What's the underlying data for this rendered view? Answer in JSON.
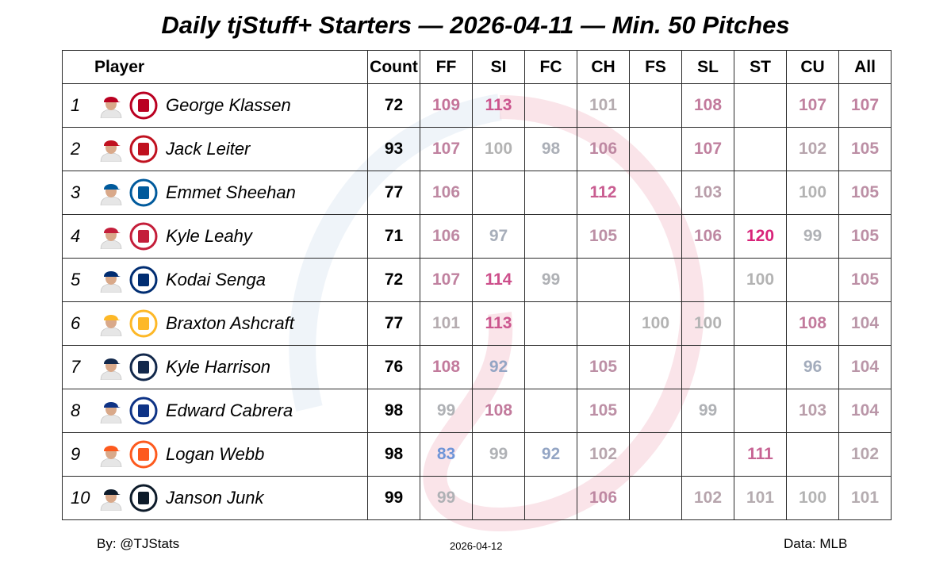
{
  "title": "Daily tjStuff+ Starters — 2026-04-11 — Min. 50 Pitches",
  "headers": {
    "player": "Player",
    "count": "Count",
    "pitches": [
      "FF",
      "SI",
      "FC",
      "CH",
      "FS",
      "SL",
      "ST",
      "CU",
      "All"
    ]
  },
  "chart_data": {
    "type": "table",
    "title": "Daily tjStuff+ Starters — 2026-04-11 — Min. 50 Pitches",
    "columns": [
      "Player",
      "Count",
      "FF",
      "SI",
      "FC",
      "CH",
      "FS",
      "SL",
      "ST",
      "CU",
      "All"
    ],
    "color_scale": {
      "low": "#6f95d8",
      "mid": "#b3b3b3",
      "high": "#d8247a"
    },
    "rows": [
      {
        "rank": "1",
        "player": "George Klassen",
        "team_logo": "angels-logo-icon",
        "logo_color": "#ba0021",
        "count": "72",
        "values": {
          "FF": 109,
          "SI": 113,
          "FC": null,
          "CH": 101,
          "FS": null,
          "SL": 108,
          "ST": null,
          "CU": 107,
          "All": 107
        }
      },
      {
        "rank": "2",
        "player": "Jack Leiter",
        "team_logo": "rangers-logo-icon",
        "logo_color": "#c0111f",
        "count": "93",
        "values": {
          "FF": 107,
          "SI": 100,
          "FC": 98,
          "CH": 106,
          "FS": null,
          "SL": 107,
          "ST": null,
          "CU": 102,
          "All": 105
        }
      },
      {
        "rank": "3",
        "player": "Emmet Sheehan",
        "team_logo": "dodgers-logo-icon",
        "logo_color": "#005a9c",
        "count": "77",
        "values": {
          "FF": 106,
          "SI": null,
          "FC": null,
          "CH": 112,
          "FS": null,
          "SL": 103,
          "ST": null,
          "CU": 100,
          "All": 105
        }
      },
      {
        "rank": "4",
        "player": "Kyle Leahy",
        "team_logo": "cardinals-logo-icon",
        "logo_color": "#c41e3a",
        "count": "71",
        "values": {
          "FF": 106,
          "SI": 97,
          "FC": null,
          "CH": 105,
          "FS": null,
          "SL": 106,
          "ST": 120,
          "CU": 99,
          "All": 105
        }
      },
      {
        "rank": "5",
        "player": "Kodai Senga",
        "team_logo": "mets-logo-icon",
        "logo_color": "#002d72",
        "count": "72",
        "values": {
          "FF": 107,
          "SI": 114,
          "FC": 99,
          "CH": null,
          "FS": null,
          "SL": null,
          "ST": 100,
          "CU": null,
          "All": 105
        }
      },
      {
        "rank": "6",
        "player": "Braxton Ashcraft",
        "team_logo": "pirates-logo-icon",
        "logo_color": "#fdb827",
        "count": "77",
        "values": {
          "FF": 101,
          "SI": 113,
          "FC": null,
          "CH": null,
          "FS": 100,
          "SL": 100,
          "ST": null,
          "CU": 108,
          "All": 104
        }
      },
      {
        "rank": "7",
        "player": "Kyle Harrison",
        "team_logo": "brewers-logo-icon",
        "logo_color": "#12284b",
        "count": "76",
        "values": {
          "FF": 108,
          "SI": 92,
          "FC": null,
          "CH": 105,
          "FS": null,
          "SL": null,
          "ST": null,
          "CU": 96,
          "All": 104
        }
      },
      {
        "rank": "8",
        "player": "Edward Cabrera",
        "team_logo": "cubs-logo-icon",
        "logo_color": "#0e3386",
        "count": "98",
        "values": {
          "FF": 99,
          "SI": 108,
          "FC": null,
          "CH": 105,
          "FS": null,
          "SL": 99,
          "ST": null,
          "CU": 103,
          "All": 104
        }
      },
      {
        "rank": "9",
        "player": "Logan Webb",
        "team_logo": "giants-logo-icon",
        "logo_color": "#fd5a1e",
        "count": "98",
        "values": {
          "FF": 83,
          "SI": 99,
          "FC": 92,
          "CH": 102,
          "FS": null,
          "SL": null,
          "ST": 111,
          "CU": null,
          "All": 102
        }
      },
      {
        "rank": "10",
        "player": "Janson Junk",
        "team_logo": "marlins-logo-icon",
        "logo_color": "#0d1b2a",
        "count": "99",
        "values": {
          "FF": 99,
          "SI": null,
          "FC": null,
          "CH": 106,
          "FS": null,
          "SL": 102,
          "ST": 101,
          "CU": 100,
          "All": 101
        }
      }
    ]
  },
  "footer": {
    "credit": "By: @TJStats",
    "date": "2026-04-12",
    "source": "Data: MLB"
  }
}
